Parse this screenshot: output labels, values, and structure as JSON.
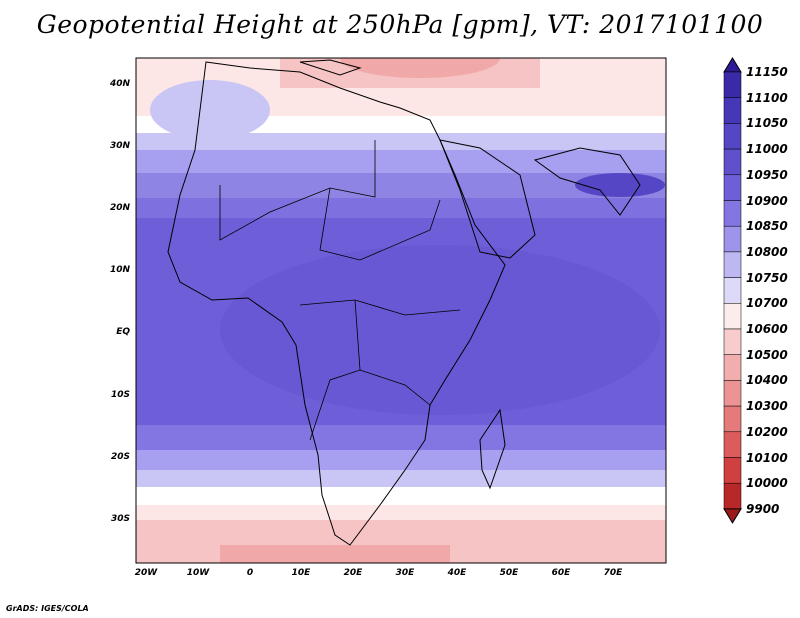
{
  "title": "Geopotential Height at 250hPa [gpm], VT: 2017101100",
  "credit": "GrADS: IGES/COLA",
  "map": {
    "lat_ticks": [
      "40N",
      "30N",
      "20N",
      "10N",
      "EQ",
      "10S",
      "20S",
      "30S"
    ],
    "lon_ticks": [
      "20W",
      "10W",
      "0",
      "10E",
      "20E",
      "30E",
      "40E",
      "50E",
      "60E",
      "70E"
    ],
    "extent": {
      "lon_min": -22,
      "lon_max": 80,
      "lat_min": -37,
      "lat_max": 45
    }
  },
  "colorbar": {
    "levels": [
      "11150",
      "11100",
      "11050",
      "11000",
      "10950",
      "10900",
      "10850",
      "10800",
      "10750",
      "10700",
      "10600",
      "10500",
      "10400",
      "10300",
      "10200",
      "10100",
      "10000",
      "9900"
    ],
    "colors": [
      "#2d1a96",
      "#3a2aa8",
      "#4636b8",
      "#5446c4",
      "#6050cc",
      "#6e5fd8",
      "#8476e2",
      "#9e95ea",
      "#bdb8f2",
      "#dcdaf8",
      "#fcecec",
      "#f8cccc",
      "#f2aeae",
      "#ec9494",
      "#e47a7a",
      "#dc5c5c",
      "#d04040",
      "#b82828",
      "#9a1a1a"
    ]
  }
}
